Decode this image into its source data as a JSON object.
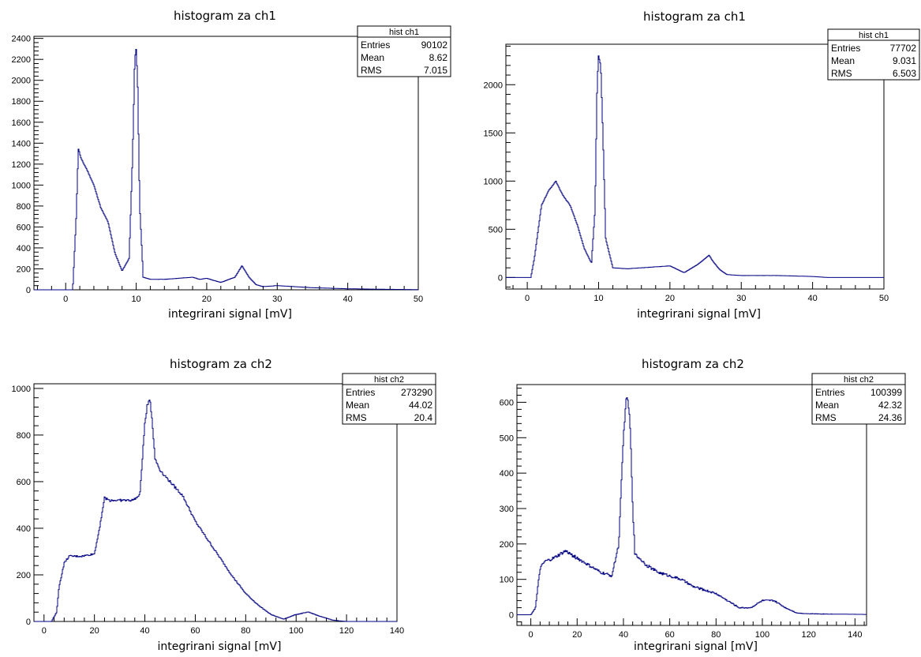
{
  "chart_data": [
    {
      "type": "histogram",
      "title": "histogram za ch1",
      "xlabel": "integrirani signal [mV]",
      "ylabel": "",
      "xlim": [
        -4.5,
        50
      ],
      "ylim": [
        0,
        2420
      ],
      "xticks": [
        0,
        10,
        20,
        30,
        40,
        50
      ],
      "yticks": [
        0,
        200,
        400,
        600,
        800,
        1000,
        1200,
        1400,
        1600,
        1800,
        2000,
        2200,
        2400
      ],
      "grid": false,
      "color": "#000080",
      "stats": {
        "name": "hist ch1",
        "entries": "90102",
        "mean": "8.62",
        "rms": "7.015"
      },
      "series": [
        {
          "x": [
            -4.5,
            0,
            1,
            1.5,
            1.8,
            2.2,
            3,
            4,
            5,
            6,
            7,
            8,
            9,
            9.5,
            9.8,
            10,
            10.2,
            10.5,
            11,
            12,
            14,
            16,
            18,
            19,
            20,
            22,
            24,
            25,
            26,
            27,
            28,
            30,
            35,
            40,
            45,
            50
          ],
          "y": [
            0,
            0,
            0,
            700,
            1350,
            1250,
            1150,
            1000,
            780,
            650,
            350,
            180,
            300,
            1300,
            2200,
            2300,
            2000,
            800,
            120,
            100,
            100,
            110,
            120,
            100,
            110,
            70,
            120,
            230,
            120,
            50,
            30,
            40,
            20,
            10,
            5,
            2
          ]
        }
      ]
    },
    {
      "type": "histogram",
      "title": "histogram za ch1",
      "xlabel": "integrirani signal [mV]",
      "ylabel": "",
      "xlim": [
        -3,
        50
      ],
      "ylim": [
        -120,
        2420
      ],
      "xticks": [
        0,
        10,
        20,
        30,
        40,
        50
      ],
      "yticks": [
        0,
        500,
        1000,
        1500,
        2000
      ],
      "grid": false,
      "color": "#000080",
      "stats": {
        "name": "hist ch1",
        "entries": "77702",
        "mean": "9.031",
        "rms": "6.503"
      },
      "series": [
        {
          "x": [
            -3,
            0,
            0.5,
            1,
            2,
            3,
            4,
            5,
            6,
            7,
            8,
            9,
            9.5,
            9.8,
            10,
            10.3,
            10.6,
            11,
            12,
            14,
            16,
            18,
            20,
            22,
            24,
            25,
            25.5,
            26,
            27,
            28,
            30,
            35,
            40,
            42,
            50
          ],
          "y": [
            0,
            0,
            0,
            200,
            750,
            900,
            1000,
            850,
            750,
            550,
            300,
            150,
            700,
            2000,
            2300,
            2200,
            1500,
            400,
            100,
            90,
            100,
            110,
            120,
            50,
            140,
            200,
            230,
            170,
            80,
            30,
            20,
            20,
            10,
            0,
            0
          ]
        }
      ]
    },
    {
      "type": "histogram",
      "title": "histogram za ch2",
      "xlabel": "integrirani signal [mV]",
      "ylabel": "",
      "xlim": [
        -4,
        140
      ],
      "ylim": [
        0,
        1020
      ],
      "xticks": [
        0,
        20,
        40,
        60,
        80,
        100,
        120,
        140
      ],
      "yticks": [
        0,
        200,
        400,
        600,
        800,
        1000
      ],
      "grid": false,
      "color": "#000080",
      "stats": {
        "name": "hist ch2",
        "entries": "273290",
        "mean": "44.02",
        "rms": "20.4"
      },
      "series": [
        {
          "x": [
            -4,
            3,
            5,
            6,
            8,
            10,
            15,
            20,
            22,
            24,
            26,
            30,
            35,
            38,
            40,
            41,
            42,
            43,
            44,
            46,
            50,
            55,
            60,
            65,
            70,
            75,
            80,
            85,
            90,
            95,
            100,
            105,
            110,
            115,
            120,
            140
          ],
          "y": [
            0,
            0,
            40,
            150,
            250,
            280,
            280,
            290,
            400,
            530,
            520,
            520,
            520,
            540,
            850,
            930,
            960,
            850,
            700,
            650,
            600,
            540,
            430,
            350,
            270,
            190,
            120,
            70,
            30,
            10,
            30,
            40,
            20,
            5,
            0,
            0
          ]
        }
      ]
    },
    {
      "type": "histogram",
      "title": "histogram za ch2",
      "xlabel": "integrirani signal [mV]",
      "ylabel": "",
      "xlim": [
        -6,
        145
      ],
      "ylim": [
        -30,
        650
      ],
      "xticks": [
        0,
        20,
        40,
        60,
        80,
        100,
        120,
        140
      ],
      "yticks": [
        0,
        100,
        200,
        300,
        400,
        500,
        600
      ],
      "grid": false,
      "color": "#000080",
      "stats": {
        "name": "hist ch2",
        "entries": "100399",
        "mean": "42.32",
        "rms": "24.36"
      },
      "series": [
        {
          "x": [
            -6,
            0,
            2,
            4,
            6,
            10,
            15,
            20,
            25,
            30,
            35,
            38,
            40,
            41,
            42,
            43,
            44,
            45,
            47,
            50,
            55,
            60,
            65,
            70,
            75,
            80,
            85,
            90,
            95,
            100,
            105,
            110,
            115,
            120,
            130,
            145
          ],
          "y": [
            0,
            0,
            20,
            130,
            150,
            160,
            180,
            160,
            140,
            120,
            110,
            200,
            500,
            600,
            610,
            520,
            300,
            170,
            160,
            140,
            120,
            110,
            100,
            80,
            70,
            60,
            40,
            20,
            20,
            40,
            40,
            20,
            5,
            3,
            2,
            1
          ]
        }
      ]
    }
  ]
}
